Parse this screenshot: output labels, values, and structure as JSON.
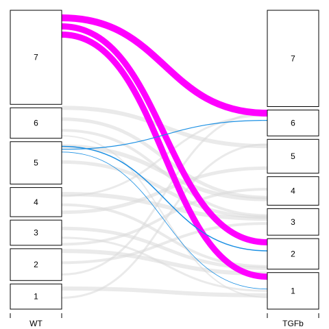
{
  "chart_data": {
    "type": "alluvial",
    "axes": [
      {
        "label": "WT",
        "strata": [
          {
            "label": "1",
            "size": 38
          },
          {
            "label": "2",
            "size": 48
          },
          {
            "label": "3",
            "size": 38
          },
          {
            "label": "4",
            "size": 44
          },
          {
            "label": "5",
            "size": 64
          },
          {
            "label": "6",
            "size": 46
          },
          {
            "label": "7",
            "size": 142
          }
        ]
      },
      {
        "label": "TGFb",
        "strata": [
          {
            "label": "1",
            "size": 55
          },
          {
            "label": "2",
            "size": 46
          },
          {
            "label": "3",
            "size": 40
          },
          {
            "label": "4",
            "size": 43
          },
          {
            "label": "5",
            "size": 51
          },
          {
            "label": "6",
            "size": 39
          },
          {
            "label": "7",
            "size": 145
          }
        ]
      }
    ],
    "highlighted_flows": [
      {
        "from": "7",
        "to": "6",
        "weight": 10,
        "color": "#ff00ff"
      },
      {
        "from": "7",
        "to": "2",
        "weight": 9,
        "color": "#ff00ff"
      },
      {
        "from": "7",
        "to": "1",
        "weight": 9,
        "color": "#ff00ff"
      },
      {
        "from": "5",
        "to": "6",
        "weight": 1.2,
        "color": "#1a8fe3"
      },
      {
        "from": "5",
        "to": "2",
        "weight": 1.5,
        "color": "#1a8fe3"
      },
      {
        "from": "5",
        "to": "1",
        "weight": 0.8,
        "color": "#1a8fe3"
      }
    ],
    "background_flows": [
      {
        "from": "6",
        "to": "5",
        "weight": 6
      },
      {
        "from": "6",
        "to": "4",
        "weight": 5
      },
      {
        "from": "6",
        "to": "3",
        "weight": 4
      },
      {
        "from": "5",
        "to": "4",
        "weight": 6
      },
      {
        "from": "5",
        "to": "3",
        "weight": 5
      },
      {
        "from": "4",
        "to": "5",
        "weight": 5
      },
      {
        "from": "4",
        "to": "3",
        "weight": 6
      },
      {
        "from": "4",
        "to": "2",
        "weight": 4
      },
      {
        "from": "3",
        "to": "4",
        "weight": 4
      },
      {
        "from": "3",
        "to": "2",
        "weight": 5
      },
      {
        "from": "3",
        "to": "1",
        "weight": 3
      },
      {
        "from": "2",
        "to": "1",
        "weight": 6
      },
      {
        "from": "2",
        "to": "3",
        "weight": 4
      },
      {
        "from": "2",
        "to": "6",
        "weight": 3
      },
      {
        "from": "1",
        "to": "1",
        "weight": 6
      },
      {
        "from": "1",
        "to": "5",
        "weight": 3
      },
      {
        "from": "6",
        "to": "1",
        "weight": 2
      },
      {
        "from": "4",
        "to": "6",
        "weight": 3
      }
    ],
    "colors": {
      "highlight_primary": "#ff00ff",
      "highlight_secondary": "#1a8fe3",
      "background_flow": "#d8d8d8",
      "stratum_fill": "#ffffff",
      "stratum_border": "#000000"
    }
  }
}
